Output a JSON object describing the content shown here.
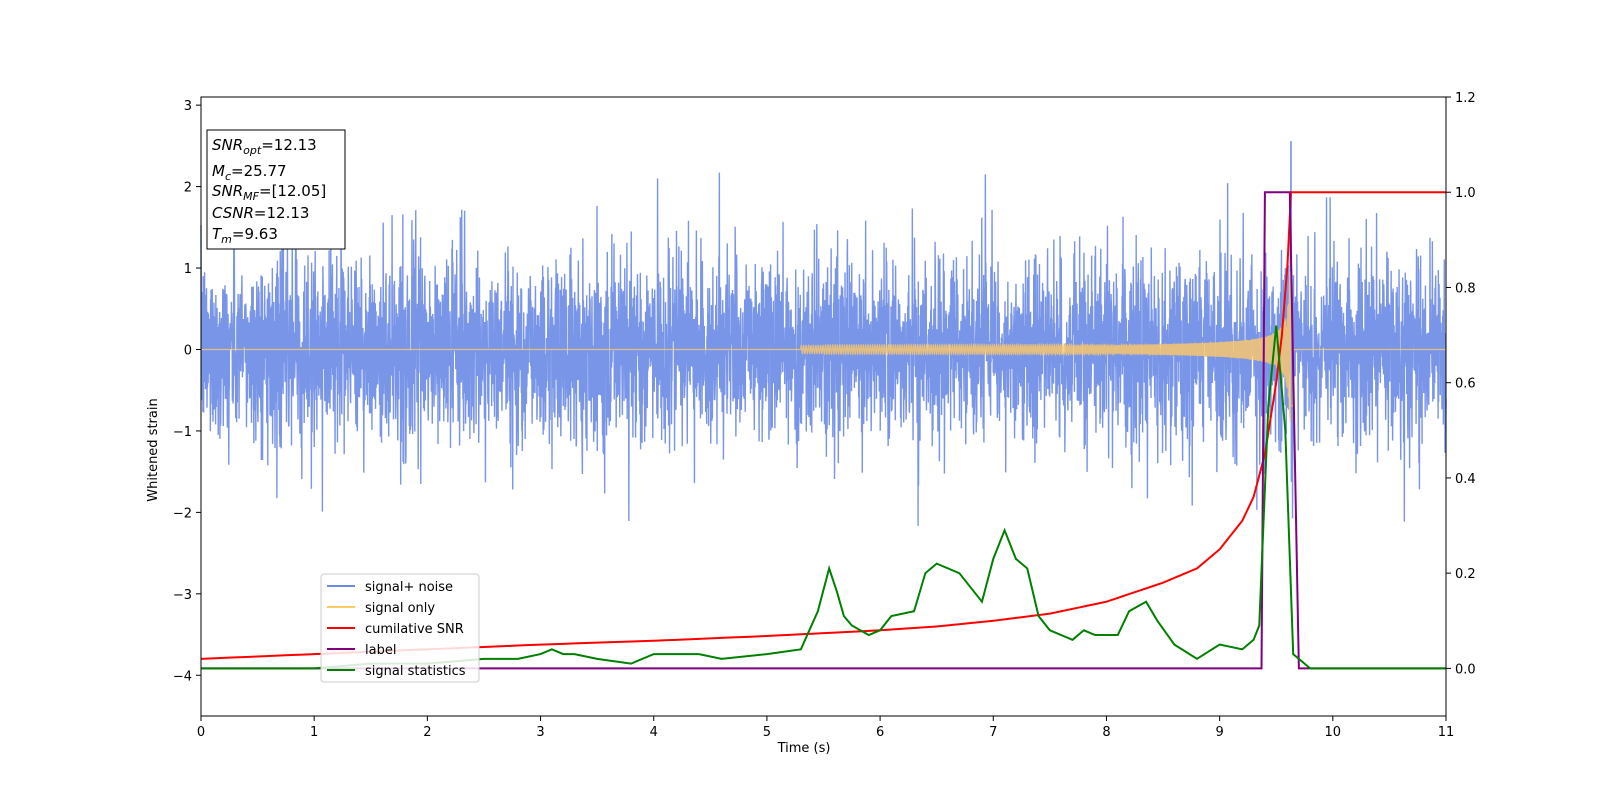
{
  "chart_data": {
    "type": "line",
    "xlabel": "Time (s)",
    "ylabel": "Whitened strain",
    "xlim": [
      0,
      11
    ],
    "ylim": [
      -4.5,
      3.1
    ],
    "y2lim": [
      -0.1,
      1.2
    ],
    "x_ticks": [
      "0",
      "1",
      "2",
      "3",
      "4",
      "5",
      "6",
      "7",
      "8",
      "9",
      "10",
      "11"
    ],
    "y_ticks": [
      "3",
      "2",
      "1",
      "0",
      "−1",
      "−2",
      "−3",
      "−4"
    ],
    "y_tick_values": [
      3,
      2,
      1,
      0,
      -1,
      -2,
      -3,
      -4
    ],
    "y2_ticks": [
      "1.2",
      "1.0",
      "0.8",
      "0.6",
      "0.4",
      "0.2",
      "0.0"
    ],
    "y2_tick_values": [
      1.2,
      1.0,
      0.8,
      0.6,
      0.4,
      0.2,
      0.0
    ],
    "annotations": [
      {
        "var": "SNR",
        "sub": "opt",
        "value": "=12.13"
      },
      {
        "var": "M",
        "sub": "c",
        "value": "=25.77"
      },
      {
        "var": "SNR",
        "sub": "MF",
        "value": "=[12.05]"
      },
      {
        "var": "CSNR",
        "sub": "",
        "value": "=12.13"
      },
      {
        "var": "T",
        "sub": "m",
        "value": "=9.63"
      }
    ],
    "legend": {
      "position": "lower-left",
      "entries": [
        {
          "label": "signal+ noise",
          "color": "#6a8ae6"
        },
        {
          "label": "signal only",
          "color": "#ffc966"
        },
        {
          "label": "cumilative SNR",
          "color": "#ff0000"
        },
        {
          "label": "label",
          "color": "#800080"
        },
        {
          "label": "signal statistics",
          "color": "#008000"
        }
      ]
    },
    "series": [
      {
        "name": "signal+ noise",
        "axis": "left",
        "color": "#6a8ae6",
        "noise_amplitude_typical": 1.3,
        "noise_extremes_approx": [
          -2.2,
          2.35
        ],
        "peak": {
          "x": 9.63,
          "y": 2.55
        }
      },
      {
        "name": "signal only",
        "axis": "left",
        "color": "#ffc966",
        "chirp_start": 5.5,
        "merger_time": 9.63,
        "peak_amplitude": 1.1
      },
      {
        "name": "cumilative SNR",
        "axis": "right",
        "color": "#ff0000",
        "x": [
          0,
          1,
          2,
          3,
          4,
          5,
          6,
          6.5,
          7,
          7.5,
          8,
          8.5,
          8.8,
          9.0,
          9.2,
          9.3,
          9.4,
          9.5,
          9.55,
          9.6,
          9.63,
          11
        ],
        "y": [
          0.02,
          0.03,
          0.04,
          0.05,
          0.058,
          0.068,
          0.08,
          0.088,
          0.1,
          0.115,
          0.14,
          0.18,
          0.21,
          0.25,
          0.31,
          0.36,
          0.45,
          0.6,
          0.7,
          0.85,
          1.0,
          1.0
        ]
      },
      {
        "name": "label",
        "axis": "right",
        "color": "#800080",
        "x": [
          0,
          9.37,
          9.4,
          9.62,
          9.7,
          11
        ],
        "y": [
          0,
          0,
          1.0,
          1.0,
          0,
          0
        ]
      },
      {
        "name": "signal statistics",
        "axis": "right",
        "color": "#008000",
        "x": [
          0,
          0.5,
          1,
          1.5,
          2,
          2.5,
          2.8,
          3.0,
          3.1,
          3.2,
          3.3,
          3.5,
          3.8,
          4.0,
          4.2,
          4.4,
          4.6,
          5.0,
          5.3,
          5.45,
          5.55,
          5.62,
          5.68,
          5.75,
          5.9,
          6.0,
          6.1,
          6.3,
          6.4,
          6.5,
          6.7,
          6.8,
          6.9,
          7.0,
          7.1,
          7.2,
          7.3,
          7.4,
          7.5,
          7.7,
          7.8,
          7.9,
          8.1,
          8.2,
          8.35,
          8.45,
          8.6,
          8.8,
          9.0,
          9.2,
          9.3,
          9.35,
          9.43,
          9.5,
          9.58,
          9.65,
          9.7,
          9.8,
          10.0,
          11
        ],
        "y": [
          0.0,
          0.0,
          0.0,
          0.01,
          0.01,
          0.02,
          0.02,
          0.03,
          0.04,
          0.03,
          0.03,
          0.02,
          0.01,
          0.03,
          0.03,
          0.03,
          0.02,
          0.03,
          0.04,
          0.12,
          0.21,
          0.16,
          0.11,
          0.09,
          0.07,
          0.08,
          0.11,
          0.12,
          0.2,
          0.22,
          0.2,
          0.17,
          0.14,
          0.23,
          0.29,
          0.23,
          0.21,
          0.11,
          0.08,
          0.06,
          0.08,
          0.07,
          0.07,
          0.12,
          0.14,
          0.1,
          0.05,
          0.02,
          0.05,
          0.04,
          0.06,
          0.09,
          0.55,
          0.72,
          0.5,
          0.03,
          0.02,
          0.0,
          0.0,
          0.0
        ]
      }
    ]
  }
}
